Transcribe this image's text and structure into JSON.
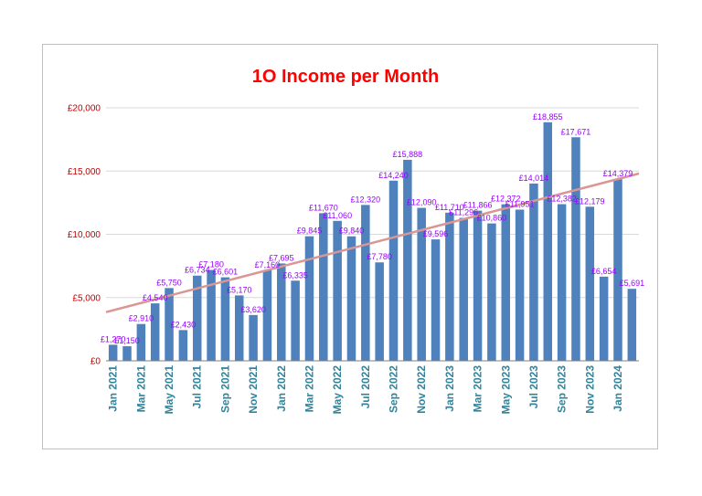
{
  "chart_data": {
    "type": "bar",
    "title": "1O Income per Month",
    "categories": [
      "Jan 2021",
      "Feb 2021",
      "Mar 2021",
      "Apr 2021",
      "May 2021",
      "Jun 2021",
      "Jul 2021",
      "Aug 2021",
      "Sep 2021",
      "Oct 2021",
      "Nov 2021",
      "Dec 2021",
      "Jan 2022",
      "Feb 2022",
      "Mar 2022",
      "Apr 2022",
      "May 2022",
      "Jun 2022",
      "Jul 2022",
      "Aug 2022",
      "Sep 2022",
      "Oct 2022",
      "Nov 2022",
      "Dec 2022",
      "Jan 2023",
      "Feb 2023",
      "Mar 2023",
      "Apr 2023",
      "May 2023",
      "Jun 2023",
      "Jul 2023",
      "Aug 2023",
      "Sep 2023",
      "Oct 2023",
      "Nov 2023",
      "Dec 2023",
      "Jan 2024",
      "Feb 2024"
    ],
    "tick_labels_shown": [
      "Jan 2021",
      "Mar 2021",
      "May 2021",
      "Jul 2021",
      "Sep 2021",
      "Nov 2021",
      "Jan 2022",
      "Mar 2022",
      "May 2022",
      "Jul 2022",
      "Sep 2022",
      "Nov 2022",
      "Jan 2023",
      "Mar 2023",
      "May 2023",
      "Jul 2023",
      "Sep 2023",
      "Nov 2023",
      "Jan 2024"
    ],
    "values": [
      1270,
      1150,
      2910,
      4540,
      5750,
      2430,
      6734,
      7180,
      6601,
      5170,
      3620,
      7160,
      7695,
      6335,
      9845,
      11670,
      11060,
      9840,
      12320,
      7780,
      14240,
      15888,
      12090,
      9596,
      11710,
      11296,
      11866,
      10860,
      12372,
      11951,
      14014,
      18855,
      12382,
      17671,
      12179,
      6654,
      14379,
      5691
    ],
    "data_labels": [
      "£1,270",
      "£1,150",
      "£2,910",
      "£4,540",
      "£5,750",
      "£2,430",
      "£6,734",
      "£7,180",
      "£6,601",
      "£5,170",
      "£3,620",
      "£7,160",
      "£7,695",
      "£6,335",
      "£9,845",
      "£11,670",
      "£11,060",
      "£9,840",
      "£12,320",
      "£7,780",
      "£14,240",
      "£15,888",
      "£12,090",
      "£9,596",
      "£11,710",
      "£11,296",
      "£11,866",
      "£10,860",
      "£12,372",
      "£11,951",
      "£14,014",
      "£18,855",
      "£12,382",
      "£17,671",
      "£12,179",
      "£6,654",
      "£14,379",
      "£5,691"
    ],
    "ylim": [
      0,
      20000
    ],
    "yticks": [
      0,
      5000,
      10000,
      15000,
      20000
    ],
    "ytick_labels": [
      "£0",
      "£5,000",
      "£10,000",
      "£15,000",
      "£20,000"
    ],
    "grid": true,
    "legend": "none",
    "trendline": {
      "type": "linear",
      "start": 3850,
      "end": 14800
    },
    "colors": {
      "bar": "#4f81bd",
      "trendline": "#d99694",
      "title": "#ff0000",
      "ytick": "#c00000",
      "xtick": "#31849b",
      "data_label": "#9900ff",
      "grid": "#d9d9d9",
      "axis": "#7f7f7f"
    }
  }
}
